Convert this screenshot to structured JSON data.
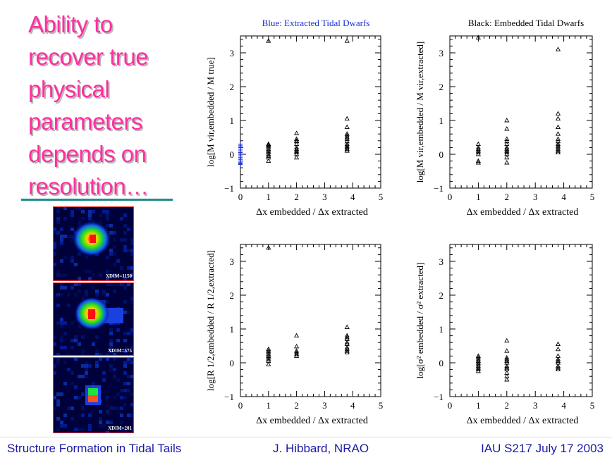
{
  "slide": {
    "title_lines": [
      "Ability to",
      "recover true",
      "physical",
      "parameters",
      "depends on",
      "resolution…"
    ]
  },
  "images": [
    {
      "label": "XDIM=1150"
    },
    {
      "label": "XDIM=575"
    },
    {
      "label": "XDIM=201"
    }
  ],
  "footer": {
    "left": "Structure Formation in Tidal Tails",
    "center": "J. Hibbard, NRAO",
    "right": "IAU S217  July 17 2003"
  },
  "colors": {
    "title": "#ff2fa0",
    "footer_text": "#1a1aa8",
    "rule": "#1f8c8c",
    "blue_series": "#1a2fd6"
  },
  "chart_data": [
    {
      "type": "scatter",
      "title": "Blue: Extracted Tidal Dwarfs",
      "xlabel": "Δx embedded / Δx extracted",
      "ylabel": "log[M vir,embedded / M true]",
      "xlim": [
        0,
        5
      ],
      "ylim": [
        -1,
        3.5
      ],
      "xticks": [
        "0",
        "1",
        "2",
        "3",
        "4",
        "5"
      ],
      "yticks": [
        "−1",
        "0",
        "1",
        "2",
        "3"
      ],
      "series": [
        {
          "name": "Blue: Extracted Tidal Dwarfs",
          "marker": "cross",
          "color": "#1a2fd6",
          "x": [
            0,
            0,
            0,
            0,
            0,
            0,
            0,
            0,
            0,
            0,
            0,
            0,
            0,
            0
          ],
          "y": [
            -0.3,
            -0.25,
            -0.2,
            -0.15,
            -0.1,
            -0.05,
            0,
            0.05,
            0.1,
            0.15,
            0.2,
            0.25,
            0.3,
            -0.28
          ]
        },
        {
          "name": "",
          "marker": "triangle",
          "color": "#000000",
          "x": [
            1,
            1,
            1,
            1,
            1,
            1,
            1,
            1,
            1,
            1,
            1,
            2,
            2,
            2,
            2,
            2,
            2,
            2,
            2,
            2,
            2,
            2,
            2,
            3.8,
            3.8,
            3.8,
            3.8,
            3.8,
            3.8,
            3.8,
            3.8,
            3.8,
            3.8,
            3.8,
            3.8,
            3.8,
            3.8,
            1,
            3.8
          ],
          "y": [
            -0.2,
            -0.1,
            0,
            0.05,
            0.1,
            0.15,
            0.2,
            0.25,
            0.28,
            0.3,
            -0.05,
            -0.1,
            0,
            0.05,
            0.1,
            0.15,
            0.2,
            0.3,
            0.38,
            0.4,
            0.45,
            0.62,
            0.05,
            0.1,
            0.15,
            0.2,
            0.25,
            0.3,
            0.38,
            0.45,
            0.5,
            0.55,
            0.6,
            0.8,
            1.05,
            0.15,
            0.2,
            3.35,
            3.35
          ]
        }
      ]
    },
    {
      "type": "scatter",
      "title": "Black: Embedded Tidal Dwarfs",
      "xlabel": "Δx embedded / Δx extracted",
      "ylabel": "log[M vir,embedded / M vir,extracted]",
      "xlim": [
        0,
        5
      ],
      "ylim": [
        -1,
        3.5
      ],
      "xticks": [
        "0",
        "1",
        "2",
        "3",
        "4",
        "5"
      ],
      "yticks": [
        "−1",
        "0",
        "1",
        "2",
        "3"
      ],
      "series": [
        {
          "name": "",
          "marker": "triangle",
          "color": "#000000",
          "x": [
            1,
            1,
            1,
            1,
            1,
            1,
            1,
            1,
            2,
            2,
            2,
            2,
            2,
            2,
            2,
            2,
            2,
            2,
            2,
            2,
            3.8,
            3.8,
            3.8,
            3.8,
            3.8,
            3.8,
            3.8,
            3.8,
            3.8,
            3.8,
            3.8,
            3.8,
            1,
            3.8
          ],
          "y": [
            -0.25,
            -0.2,
            0,
            0.05,
            0.1,
            0.15,
            0.2,
            0.3,
            -0.25,
            -0.1,
            0,
            0.05,
            0.1,
            0.15,
            0.2,
            0.3,
            0.38,
            0.45,
            0.75,
            1.0,
            0.05,
            0.1,
            0.15,
            0.2,
            0.25,
            0.3,
            0.38,
            0.45,
            0.6,
            0.8,
            1.05,
            1.2,
            3.45,
            3.1
          ]
        }
      ]
    },
    {
      "type": "scatter",
      "title": "",
      "xlabel": "Δx embedded / Δx extracted",
      "ylabel": "log[R 1/2,embedded / R 1/2,extracted]",
      "xlim": [
        0,
        5
      ],
      "ylim": [
        -1,
        3.5
      ],
      "xticks": [
        "0",
        "1",
        "2",
        "3",
        "4",
        "5"
      ],
      "yticks": [
        "−1",
        "0",
        "1",
        "2",
        "3"
      ],
      "series": [
        {
          "name": "",
          "marker": "triangle",
          "color": "#000000",
          "x": [
            1,
            1,
            1,
            1,
            1,
            1,
            1,
            1,
            1,
            2,
            2,
            2,
            2,
            2,
            2,
            2,
            3.8,
            3.8,
            3.8,
            3.8,
            3.8,
            3.8,
            3.8,
            3.8,
            3.8,
            3.8,
            1
          ],
          "y": [
            -0.05,
            0.05,
            0.1,
            0.15,
            0.2,
            0.25,
            0.3,
            0.35,
            0.4,
            0.2,
            0.25,
            0.3,
            0.35,
            0.48,
            0.8,
            0.25,
            0.35,
            0.4,
            0.45,
            0.55,
            0.6,
            0.7,
            0.75,
            0.8,
            1.05,
            0.3,
            3.4
          ]
        }
      ]
    },
    {
      "type": "scatter",
      "title": "",
      "xlabel": "Δx embedded / Δx extracted",
      "ylabel": "log[σ² embedded / σ² extracted]",
      "xlim": [
        0,
        5
      ],
      "ylim": [
        -1,
        3.5
      ],
      "xticks": [
        "0",
        "1",
        "2",
        "3",
        "4",
        "5"
      ],
      "yticks": [
        "−1",
        "0",
        "1",
        "2",
        "3"
      ],
      "series": [
        {
          "name": "",
          "marker": "triangle",
          "color": "#000000",
          "x": [
            1,
            1,
            1,
            1,
            1,
            1,
            1,
            1,
            1,
            1,
            2,
            2,
            2,
            2,
            2,
            2,
            2,
            2,
            2,
            2,
            2,
            2,
            3.8,
            3.8,
            3.8,
            3.8,
            3.8,
            3.8,
            3.8,
            3.8,
            3.8
          ],
          "y": [
            -0.2,
            -0.15,
            -0.1,
            -0.05,
            0,
            0.05,
            0.1,
            0.15,
            0.2,
            -0.25,
            -0.5,
            -0.4,
            -0.3,
            -0.2,
            -0.1,
            0,
            0.05,
            0.1,
            0.15,
            0.35,
            0.65,
            -0.15,
            -0.2,
            -0.1,
            0,
            0.05,
            0.1,
            0.2,
            0.4,
            0.55,
            -0.15
          ]
        }
      ]
    }
  ]
}
